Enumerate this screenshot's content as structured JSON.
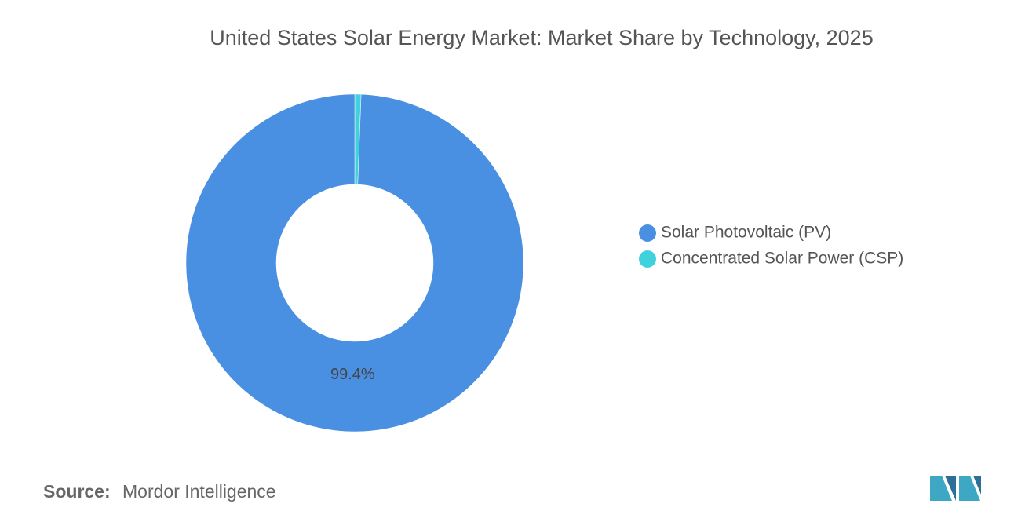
{
  "chart_data": {
    "type": "donut",
    "title": "United States Solar Energy Market: Market Share by Technology, 2025",
    "categories": [
      "Solar Photovoltaic (PV)",
      "Concentrated Solar Power (CSP)"
    ],
    "values": [
      99.4,
      0.6
    ],
    "value_labels": [
      "99.4%",
      null
    ],
    "colors": [
      "#4a90e2",
      "#3fd2dc"
    ],
    "legend": "right"
  },
  "source": {
    "label": "Source:",
    "text": "Mordor Intelligence"
  }
}
